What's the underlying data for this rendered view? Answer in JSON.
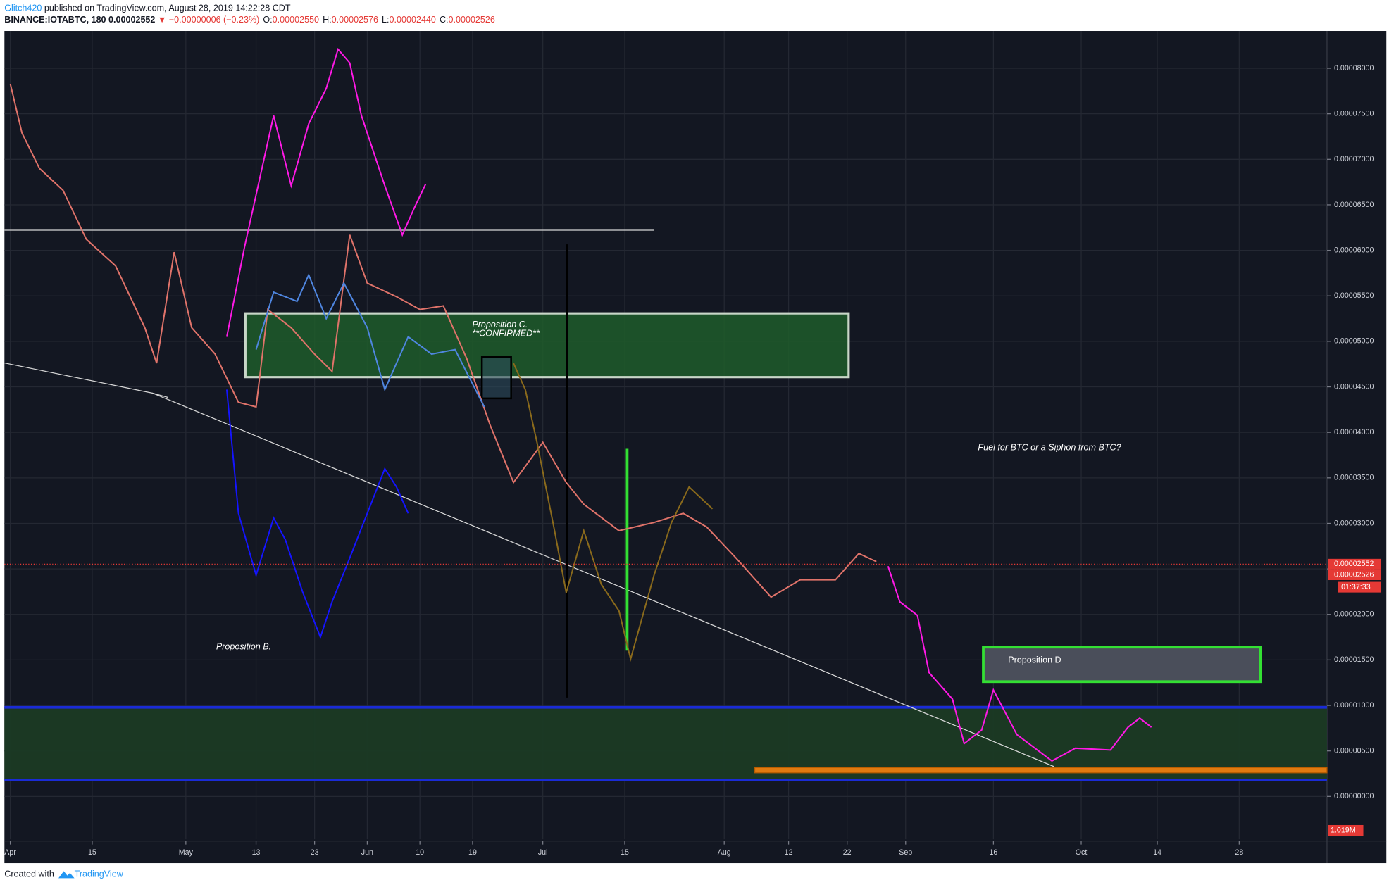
{
  "chart_data": {
    "type": "line",
    "publisher": "Glitch420",
    "published": "published on TradingView.com, August 28, 2019 14:22:28 CDT",
    "symbol": "BINANCE:IOTABTC, 180 0.00002552",
    "change": "▼ −0.00000006 (−0.23%)",
    "ohlc": [
      {
        "label": "O:",
        "value": "0.00002550"
      },
      {
        "label": "H:",
        "value": "0.00002576"
      },
      {
        "label": "L:",
        "value": "0.00002440"
      },
      {
        "label": "C:",
        "value": "0.00002526"
      }
    ],
    "footer": "Created with",
    "brand": "TradingView",
    "xlim": [
      "03-31",
      "11-12"
    ],
    "xticks": [
      {
        "value": "04-01",
        "label": "Apr"
      },
      {
        "value": "04-15",
        "label": "15"
      },
      {
        "value": "05-01",
        "label": "May"
      },
      {
        "value": "05-13",
        "label": "13"
      },
      {
        "value": "05-23",
        "label": "23"
      },
      {
        "value": "06-01",
        "label": "Jun"
      },
      {
        "value": "06-10",
        "label": "10"
      },
      {
        "value": "06-19",
        "label": "19"
      },
      {
        "value": "07-01",
        "label": "Jul"
      },
      {
        "value": "07-15",
        "label": "15"
      },
      {
        "value": "08-01",
        "label": "Aug"
      },
      {
        "value": "08-12",
        "label": "12"
      },
      {
        "value": "08-22",
        "label": "22"
      },
      {
        "value": "09-01",
        "label": "Sep"
      },
      {
        "value": "09-16",
        "label": "16"
      },
      {
        "value": "10-01",
        "label": "Oct"
      },
      {
        "value": "10-14",
        "label": "14"
      },
      {
        "value": "10-28",
        "label": "28"
      }
    ],
    "ylim": [
      -4.7e-06,
      8.41e-05
    ],
    "yticks": [
      {
        "value": 0,
        "label": "0.00000000"
      },
      {
        "value": 5e-06,
        "label": "0.00000500"
      },
      {
        "value": 1e-05,
        "label": "0.00001000"
      },
      {
        "value": 1.5e-05,
        "label": "0.00001500"
      },
      {
        "value": 2e-05,
        "label": "0.00002000"
      },
      {
        "value": 2.5e-05,
        "label": "0.00002500"
      },
      {
        "value": 3e-05,
        "label": "0.00003000"
      },
      {
        "value": 3.5e-05,
        "label": "0.00003500"
      },
      {
        "value": 4e-05,
        "label": "0.00004000"
      },
      {
        "value": 4.5e-05,
        "label": "0.00004500"
      },
      {
        "value": 5e-05,
        "label": "0.00005000"
      },
      {
        "value": 5.5e-05,
        "label": "0.00005500"
      },
      {
        "value": 6e-05,
        "label": "0.00006000"
      },
      {
        "value": 6.5e-05,
        "label": "0.00006500"
      },
      {
        "value": 7e-05,
        "label": "0.00007000"
      },
      {
        "value": 7.5e-05,
        "label": "0.00007500"
      },
      {
        "value": 8e-05,
        "label": "0.00008000"
      }
    ],
    "grid": true,
    "series": [
      {
        "color": "#e0736a",
        "x": [
          "04-01",
          "04-03",
          "04-06",
          "04-10",
          "04-14",
          "04-19",
          "04-24",
          "04-26",
          "04-29",
          "05-02",
          "05-06",
          "05-10",
          "05-13",
          "05-15",
          "05-19",
          "05-23",
          "05-26",
          "05-29",
          "06-01",
          "06-06",
          "06-10",
          "06-14",
          "06-18",
          "06-22",
          "06-26",
          "07-01",
          "07-05",
          "07-08",
          "07-14",
          "07-20",
          "07-25",
          "07-29",
          "08-03",
          "08-09",
          "08-14",
          "08-20",
          "08-24",
          "08-27"
        ],
        "values": [
          7.83e-05,
          7.29e-05,
          6.9e-05,
          6.66e-05,
          6.12e-05,
          5.83e-05,
          5.15e-05,
          4.76e-05,
          5.98e-05,
          5.15e-05,
          4.86e-05,
          4.33e-05,
          4.28e-05,
          5.35e-05,
          5.15e-05,
          4.86e-05,
          4.67e-05,
          6.17e-05,
          5.64e-05,
          5.49e-05,
          5.35e-05,
          5.39e-05,
          4.81e-05,
          4.08e-05,
          3.45e-05,
          3.89e-05,
          3.45e-05,
          3.21e-05,
          2.92e-05,
          3.01e-05,
          3.11e-05,
          2.96e-05,
          2.62e-05,
          2.19e-05,
          2.38e-05,
          2.38e-05,
          2.67e-05,
          2.58e-05
        ]
      },
      {
        "color": "#ff19e6",
        "x": [
          "08-29",
          "08-31",
          "09-03",
          "09-05",
          "09-09",
          "09-11",
          "09-14",
          "09-16",
          "09-20",
          "09-26",
          "09-30",
          "10-06",
          "10-09",
          "10-11",
          "10-13"
        ],
        "values": [
          2.53e-05,
          2.14e-05,
          1.99e-05,
          1.36e-05,
          1.07e-05,
          5.8e-06,
          7.3e-06,
          1.17e-05,
          6.8e-06,
          3.9e-06,
          5.3e-06,
          5.1e-06,
          7.6e-06,
          8.6e-06,
          7.6e-06
        ]
      },
      {
        "color": "#ff19e6",
        "x": [
          "05-08",
          "05-11",
          "05-16",
          "05-19",
          "05-22",
          "05-25",
          "05-27",
          "05-29",
          "05-31",
          "06-04",
          "06-07",
          "06-09",
          "06-11"
        ],
        "values": [
          5.05e-05,
          6.03e-05,
          7.48e-05,
          6.71e-05,
          7.39e-05,
          7.78e-05,
          8.21e-05,
          8.06e-05,
          7.48e-05,
          6.71e-05,
          6.17e-05,
          6.46e-05,
          6.73e-05
        ]
      },
      {
        "color": "#4f86e0",
        "x": [
          "05-13",
          "05-16",
          "05-20",
          "05-22",
          "05-25",
          "05-28",
          "06-01",
          "06-04",
          "06-08",
          "06-12",
          "06-16",
          "06-21"
        ],
        "values": [
          4.91e-05,
          5.54e-05,
          5.44e-05,
          5.73e-05,
          5.25e-05,
          5.64e-05,
          5.15e-05,
          4.47e-05,
          5.05e-05,
          4.86e-05,
          4.91e-05,
          4.28e-05
        ]
      },
      {
        "color": "#1414ff",
        "x": [
          "05-08",
          "05-10",
          "05-13",
          "05-16",
          "05-18",
          "05-21",
          "05-24",
          "05-26",
          "05-29",
          "06-01",
          "06-04",
          "06-06",
          "06-08"
        ],
        "values": [
          4.47e-05,
          3.11e-05,
          2.43e-05,
          3.06e-05,
          2.82e-05,
          2.24e-05,
          1.75e-05,
          2.14e-05,
          2.62e-05,
          3.11e-05,
          3.6e-05,
          3.4e-05,
          3.11e-05
        ]
      },
      {
        "color": "#8a6a1c",
        "x": [
          "06-26",
          "06-28",
          "06-30",
          "07-03",
          "07-05",
          "07-08",
          "07-11",
          "07-14",
          "07-16",
          "07-20",
          "07-23",
          "07-26",
          "07-30"
        ],
        "values": [
          4.76e-05,
          4.47e-05,
          3.89e-05,
          2.92e-05,
          2.24e-05,
          2.92e-05,
          2.33e-05,
          2.04e-05,
          1.51e-05,
          2.43e-05,
          3.01e-05,
          3.4e-05,
          3.16e-05
        ]
      }
    ],
    "last_price": {
      "value": 2.552e-05,
      "label": "0.00002552"
    },
    "close_price": {
      "value": 2.526e-05,
      "label": "0.00002526"
    },
    "countdown": "01:37:33",
    "volume_label": "1.019M",
    "annotations": [
      "Proposition C.",
      "**CONFIRMED**",
      "Proposition B.",
      "Proposition D",
      "Fuel for BTC or a Siphon from BTC?"
    ]
  }
}
